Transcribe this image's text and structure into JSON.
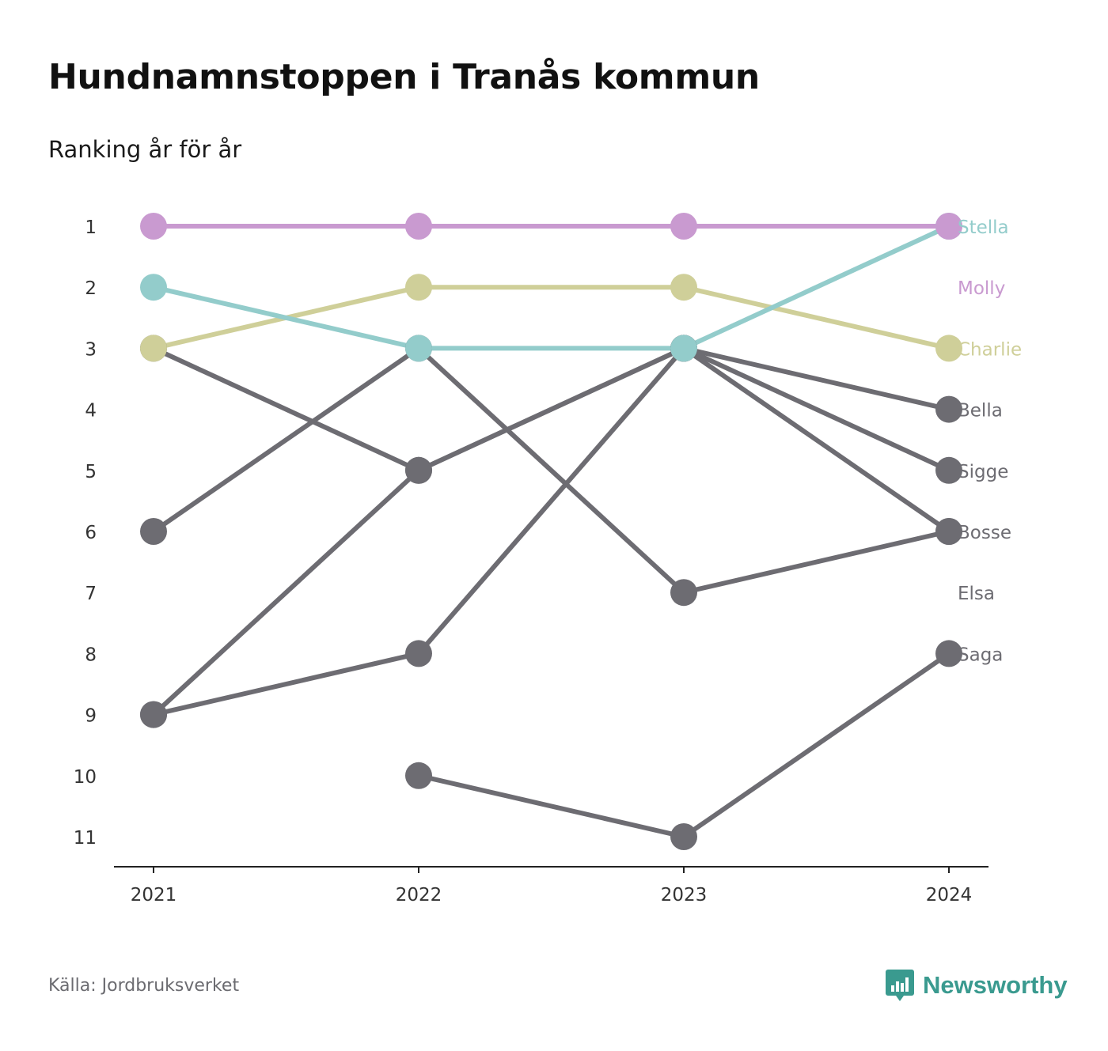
{
  "title": "Hundnamnstoppen i Tranås kommun",
  "subtitle": "Ranking år för år",
  "source": "Källa: Jordbruksverket",
  "brand": {
    "name": "Newsworthy",
    "icon": "bar-chart-speech-bubble-icon",
    "color": "#3a9a8f"
  },
  "chart_data": {
    "type": "line",
    "x": [
      "2021",
      "2022",
      "2023",
      "2024"
    ],
    "y_ticks": [
      1,
      2,
      3,
      4,
      5,
      6,
      7,
      8,
      9,
      10,
      11
    ],
    "ylim": [
      11,
      1
    ],
    "y_reversed": true,
    "grid": false,
    "series": [
      {
        "name": "Bella",
        "color": "#6d6c72",
        "values": [
          9,
          8,
          3,
          4
        ]
      },
      {
        "name": "Sigge",
        "color": "#6d6c72",
        "values": [
          9,
          5,
          3,
          5
        ]
      },
      {
        "name": "Bosse",
        "color": "#6d6c72",
        "values": [
          3,
          5,
          3,
          6
        ]
      },
      {
        "name": "Elsa",
        "color": "#6d6c72",
        "values": [
          6,
          3,
          7,
          6
        ]
      },
      {
        "name": "Saga",
        "color": "#6d6c72",
        "values": [
          null,
          10,
          11,
          8
        ]
      },
      {
        "name": "Charlie",
        "color": "#cfcf99",
        "values": [
          3,
          2,
          2,
          3
        ]
      },
      {
        "name": "Stella",
        "color": "#93cccb",
        "values": [
          2,
          3,
          3,
          1
        ]
      },
      {
        "name": "Molly",
        "color": "#c99ad0",
        "values": [
          1,
          1,
          1,
          1
        ]
      }
    ],
    "end_labels": [
      {
        "name": "Stella",
        "rank": 1,
        "color": "#93cccb"
      },
      {
        "name": "Molly",
        "rank": 2,
        "color": "#c99ad0"
      },
      {
        "name": "Charlie",
        "rank": 3,
        "color": "#cfcf99"
      },
      {
        "name": "Bella",
        "rank": 4,
        "color": "#6d6c72"
      },
      {
        "name": "Sigge",
        "rank": 5,
        "color": "#6d6c72"
      },
      {
        "name": "Bosse",
        "rank": 6,
        "color": "#6d6c72"
      },
      {
        "name": "Elsa",
        "rank": 7,
        "color": "#6d6c72"
      },
      {
        "name": "Saga",
        "rank": 8,
        "color": "#6d6c72"
      }
    ],
    "axis_color": "#222222",
    "tick_label_color": "#333333"
  }
}
